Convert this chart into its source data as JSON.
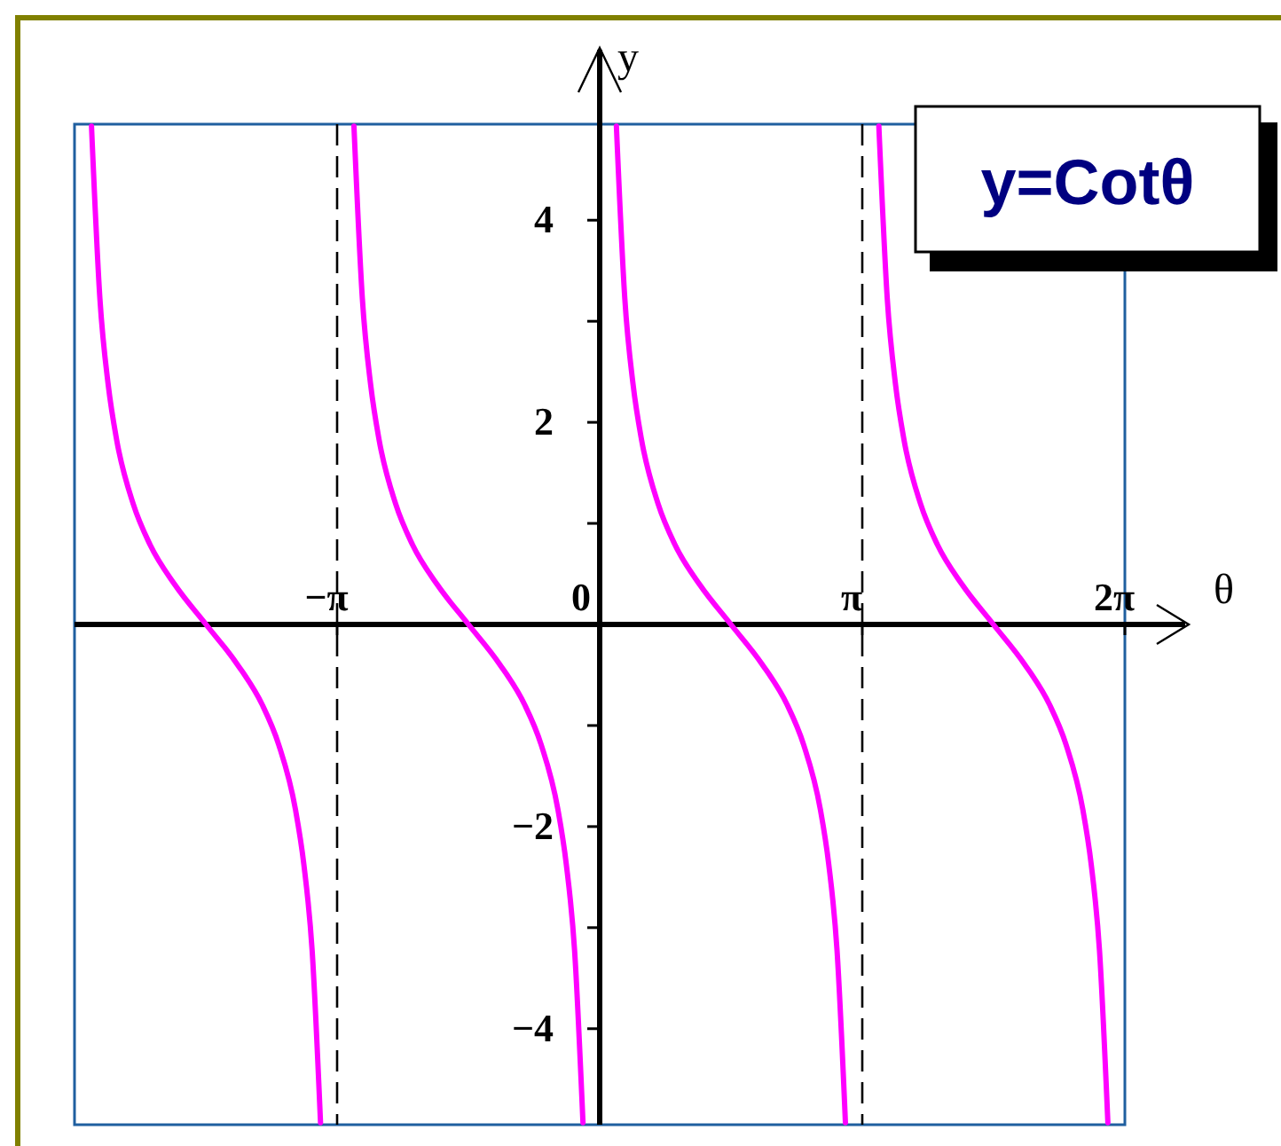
{
  "chart_data": {
    "type": "line",
    "title": "y=Cotθ",
    "xlabel": "θ",
    "ylabel": "y",
    "xlim": [
      -6.2832,
      6.2832
    ],
    "ylim": [
      -4.95,
      4.95
    ],
    "xticks": [
      {
        "value": -3.1416,
        "label": "−π"
      },
      0,
      {
        "value": 3.1416,
        "label": "π"
      },
      {
        "value": 6.2832,
        "label": "2π"
      }
    ],
    "yticks": [
      {
        "value": -4,
        "label": "−4"
      },
      {
        "value": -3,
        "label": null
      },
      {
        "value": -2,
        "label": "−2"
      },
      {
        "value": -1,
        "label": null
      },
      {
        "value": 1,
        "label": null
      },
      {
        "value": 2,
        "label": "2"
      },
      {
        "value": 3,
        "label": null
      },
      {
        "value": 4,
        "label": "4"
      }
    ],
    "ref_lines": [
      {
        "axis": "x",
        "value": -3.1416,
        "color": "#000000",
        "line_style": "dashed"
      },
      {
        "axis": "x",
        "value": 3.1416,
        "color": "#000000",
        "line_style": "dashed"
      }
    ],
    "grid": false,
    "marker": "none",
    "line_style": "solid",
    "series": [
      {
        "color": "#ff00ff",
        "x": [
          -6.08,
          -5.98,
          -5.88,
          -5.78,
          -5.58,
          -5.38,
          -5.08,
          -4.71,
          -4.34,
          -4.04,
          -3.84,
          -3.64,
          -3.54,
          -3.44,
          -3.34,
          -3.14,
          -2.94,
          -2.84,
          -2.74,
          -2.64,
          -2.44,
          -2.24,
          -1.94,
          -1.57,
          -1.2,
          -0.9,
          -0.7,
          -0.5,
          -0.4,
          -0.3,
          -0.2,
          0,
          0.2,
          0.3,
          0.4,
          0.5,
          0.7,
          0.9,
          1.2,
          1.57,
          1.94,
          2.24,
          2.44,
          2.64,
          2.74,
          2.84,
          2.94,
          3.14,
          3.34,
          3.44,
          3.54,
          3.64,
          3.84,
          4.04,
          4.34,
          4.71,
          5.08,
          5.38,
          5.58,
          5.78,
          5.88,
          5.98,
          6.08
        ],
        "values": [
          4.93,
          3.23,
          2.37,
          1.83,
          1.19,
          0.79,
          0.39,
          0,
          -0.39,
          -0.79,
          -1.19,
          -1.83,
          -2.37,
          -3.23,
          -4.93,
          null,
          4.93,
          3.23,
          2.37,
          1.83,
          1.19,
          0.79,
          0.39,
          0,
          -0.39,
          -0.79,
          -1.19,
          -1.83,
          -2.37,
          -3.23,
          -4.93,
          null,
          4.93,
          3.23,
          2.37,
          1.83,
          1.19,
          0.79,
          0.39,
          0,
          -0.39,
          -0.79,
          -1.19,
          -1.83,
          -2.37,
          -3.23,
          -4.93,
          null,
          4.93,
          3.23,
          2.37,
          1.83,
          1.19,
          0.79,
          0.39,
          0,
          -0.39,
          -0.79,
          -1.19,
          -1.83,
          -2.37,
          -3.23,
          -4.93
        ]
      }
    ]
  }
}
